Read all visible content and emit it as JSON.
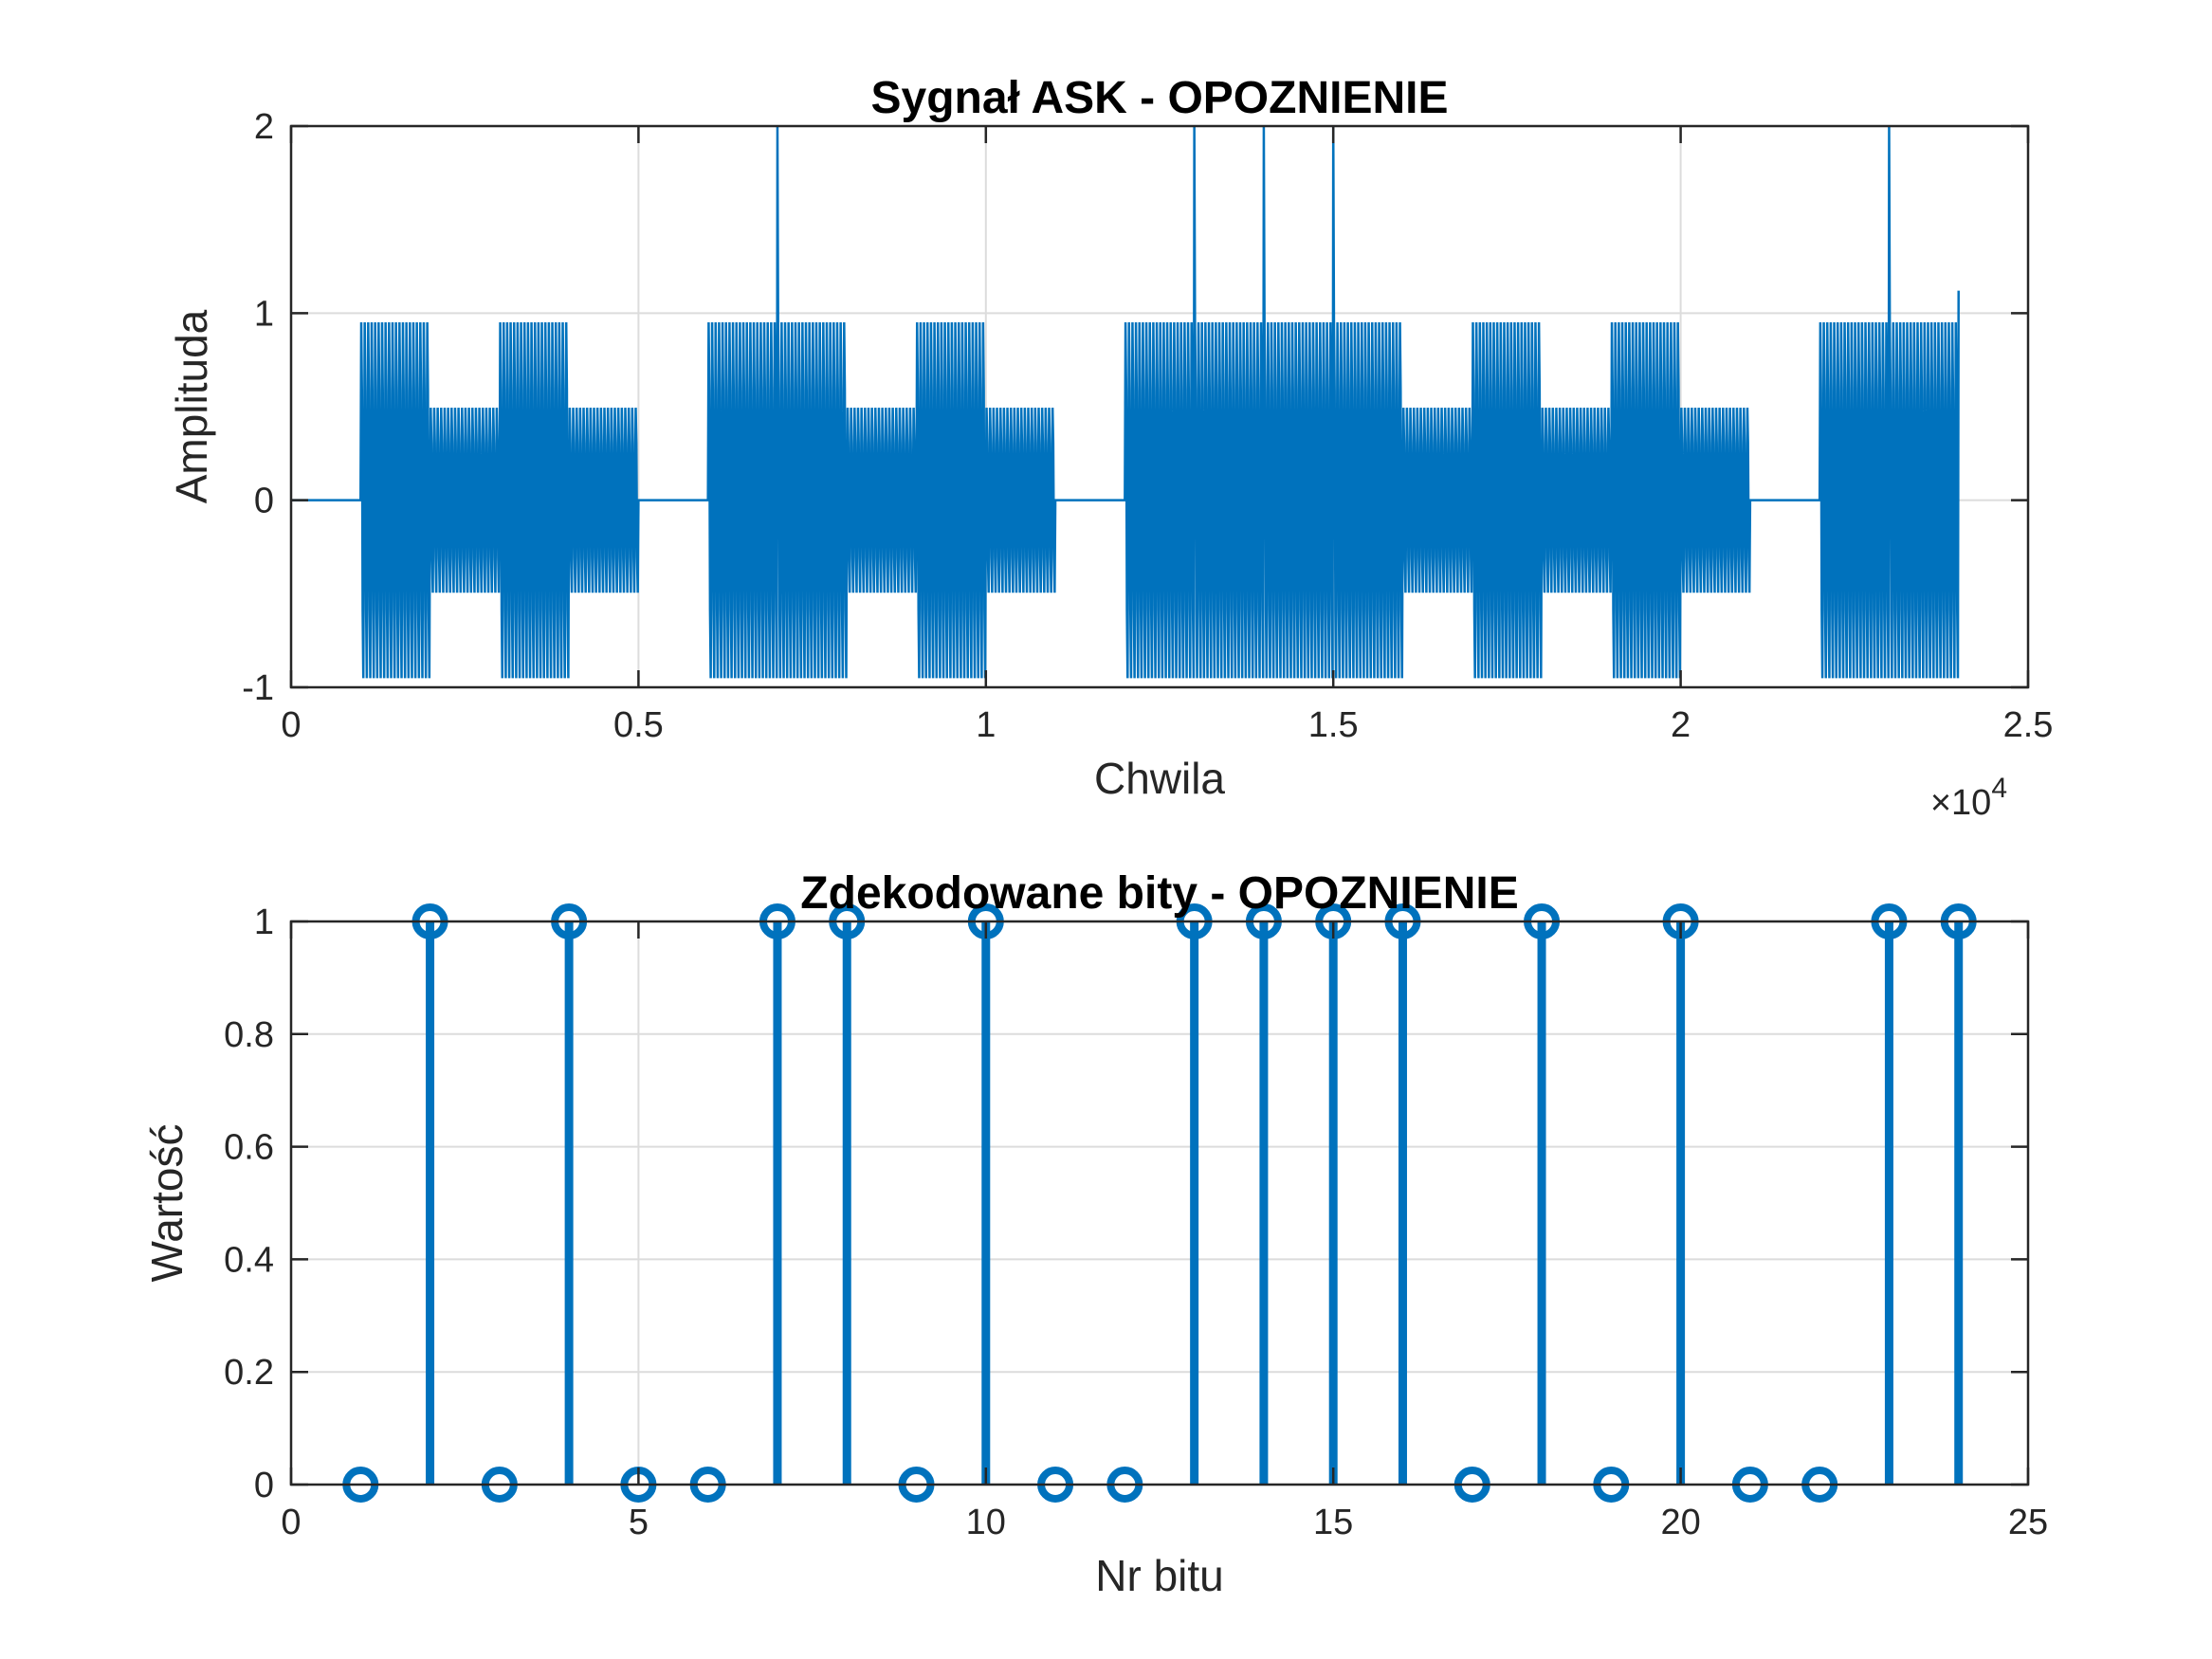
{
  "colors": {
    "series": "#0072BD",
    "axis": "#262626",
    "grid": "#dcdcdc"
  },
  "chart_data": [
    {
      "type": "line",
      "title": "Sygnał ASK - OPOZNIENIE",
      "xlabel": "Chwila",
      "ylabel": "Amplituda",
      "xlim": [
        0,
        25000
      ],
      "ylim": [
        -1,
        2
      ],
      "x_exponent_label": "×10",
      "x_exponent_power": "4",
      "xticks": [
        0,
        5000,
        10000,
        15000,
        20000,
        25000
      ],
      "xtick_labels": [
        "0",
        "0.5",
        "1",
        "1.5",
        "2",
        "2.5"
      ],
      "yticks": [
        -1,
        0,
        1,
        2
      ],
      "ytick_labels": [
        "-1",
        "0",
        "1",
        "2"
      ],
      "grid": true,
      "samples_per_bit": 1000,
      "bits": [
        0,
        1,
        0,
        1,
        0,
        0,
        1,
        1,
        0,
        1,
        0,
        0,
        1,
        1,
        1,
        1,
        0,
        1,
        0,
        1,
        0,
        0,
        1,
        1
      ],
      "delayed_bits": [
        0,
        0,
        1,
        0,
        1,
        0,
        0,
        1,
        1,
        0,
        1,
        0,
        0,
        1,
        1,
        1,
        1,
        0,
        1,
        0,
        1,
        0,
        0,
        1,
        1
      ],
      "series": [
        {
          "name": "",
          "color": "#0072BD",
          "carrier_cycles_per_bit": 20,
          "amplitude_high": 1,
          "amplitude_echo": 0.52,
          "spike_value": 2
        }
      ]
    },
    {
      "type": "stem",
      "title": "Zdekodowane bity - OPOZNIENIE",
      "xlabel": "Nr bitu",
      "ylabel": "Wartość",
      "xlim": [
        0,
        25
      ],
      "ylim": [
        0,
        1
      ],
      "xticks": [
        0,
        5,
        10,
        15,
        20,
        25
      ],
      "xtick_labels": [
        "0",
        "5",
        "10",
        "15",
        "20",
        "25"
      ],
      "yticks": [
        0,
        0.2,
        0.4,
        0.6,
        0.8,
        1
      ],
      "ytick_labels": [
        "0",
        "0.2",
        "0.4",
        "0.6",
        "0.8",
        "1"
      ],
      "grid": true,
      "x": [
        1,
        2,
        3,
        4,
        5,
        6,
        7,
        8,
        9,
        10,
        11,
        12,
        13,
        14,
        15,
        16,
        17,
        18,
        19,
        20,
        21,
        22,
        23,
        24
      ],
      "values": [
        0,
        1,
        0,
        1,
        0,
        0,
        1,
        1,
        0,
        1,
        0,
        0,
        1,
        1,
        1,
        1,
        0,
        1,
        0,
        1,
        0,
        0,
        1,
        1
      ],
      "series": [
        {
          "name": "",
          "color": "#0072BD"
        }
      ]
    }
  ]
}
